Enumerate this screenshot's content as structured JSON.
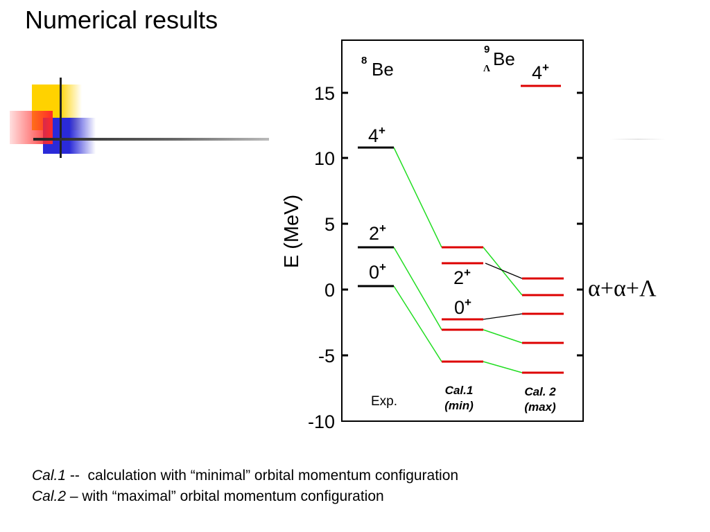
{
  "title": "Numerical results",
  "diagram": {
    "y_axis_label": "E (MeV)",
    "y_ticks": [
      "15",
      "10",
      "5",
      "0",
      "-5",
      "-10"
    ],
    "header_left": {
      "mass": "8",
      "symbol": "Be"
    },
    "header_right": {
      "mass": "9",
      "sub": "Λ",
      "symbol": "Be"
    },
    "column_labels": {
      "exp": "Exp.",
      "cal1_line1": "Cal.1",
      "cal1_line2": "(min)",
      "cal2_line1": "Cal. 2",
      "cal2_line2": "(max)"
    },
    "level_labels": {
      "exp_4": "4",
      "exp_2": "2",
      "exp_0": "0",
      "cal1_2": "2",
      "cal1_0": "0",
      "cal2_4": "4",
      "plus": "+"
    },
    "levels_MeV": {
      "exp": [
        0.3,
        3.2,
        10.8
      ],
      "cal1": [
        -5.4,
        -3.0,
        -2.2,
        2.0,
        3.2
      ],
      "cal2": [
        -6.2,
        -4.0,
        -1.8,
        -0.4,
        0.9,
        15.6
      ]
    },
    "colors": {
      "exp": "#000000",
      "calc": "#dd0000",
      "connector": "#22dd22",
      "threshold": "#000000"
    }
  },
  "threshold_label": "α+α+Λ",
  "footnotes": {
    "line1_em": "Cal.1",
    "line1_sep": " -- ",
    "line1_text": "calculation with “minimal” orbital momentum configuration",
    "line2_em": "Cal.2",
    "line2_sep": " – ",
    "line2_text": "with “maximal” orbital momentum configuration"
  }
}
